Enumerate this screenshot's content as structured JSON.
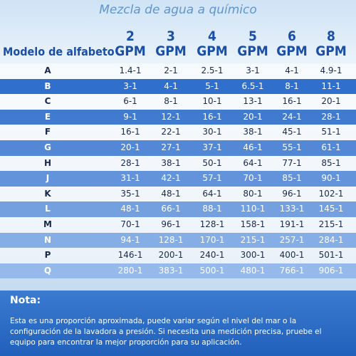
{
  "title": "Mezcla de agua a químico",
  "table": {
    "header": {
      "label": "Modelo de alfabeto",
      "columns": [
        {
          "num": "2",
          "unit": "GPM"
        },
        {
          "num": "3",
          "unit": "GPM"
        },
        {
          "num": "4",
          "unit": "GPM"
        },
        {
          "num": "5",
          "unit": "GPM"
        },
        {
          "num": "6",
          "unit": "GPM"
        },
        {
          "num": "8",
          "unit": "GPM"
        }
      ]
    },
    "rows": [
      [
        "A",
        "1.4-1",
        "2-1",
        "2.5-1",
        "3-1",
        "4-1",
        "4.9-1"
      ],
      [
        "B",
        "3-1",
        "4-1",
        "5-1",
        "6.5-1",
        "8-1",
        "11-1"
      ],
      [
        "C",
        "6-1",
        "8-1",
        "10-1",
        "13-1",
        "16-1",
        "20-1"
      ],
      [
        "E",
        "9-1",
        "12-1",
        "16-1",
        "20-1",
        "24-1",
        "28-1"
      ],
      [
        "F",
        "16-1",
        "22-1",
        "30-1",
        "38-1",
        "45-1",
        "51-1"
      ],
      [
        "G",
        "20-1",
        "27-1",
        "37-1",
        "46-1",
        "55-1",
        "61-1"
      ],
      [
        "H",
        "28-1",
        "38-1",
        "50-1",
        "64-1",
        "77-1",
        "85-1"
      ],
      [
        "J",
        "31-1",
        "42-1",
        "57-1",
        "70-1",
        "85-1",
        "90-1"
      ],
      [
        "K",
        "35-1",
        "48-1",
        "64-1",
        "80-1",
        "96-1",
        "102-1"
      ],
      [
        "L",
        "48-1",
        "66-1",
        "88-1",
        "110-1",
        "133-1",
        "145-1"
      ],
      [
        "M",
        "70-1",
        "96-1",
        "128-1",
        "158-1",
        "191-1",
        "215-1"
      ],
      [
        "N",
        "94-1",
        "128-1",
        "170-1",
        "215-1",
        "257-1",
        "284-1"
      ],
      [
        "P",
        "146-1",
        "200-1",
        "240-1",
        "300-1",
        "400-1",
        "501-1"
      ],
      [
        "Q",
        "280-1",
        "383-1",
        "500-1",
        "480-1",
        "766-1",
        "906-1"
      ]
    ]
  },
  "note": {
    "title": "Nota:",
    "lines": [
      "Esta es una proporción aproximada, puede variar según el nivel del mar o la",
      "configuración de la lavadora a presión. Si necesita una medición precisa, pruebe el",
      "equipo para encontrar la mejor proporción para su aplicación."
    ]
  }
}
